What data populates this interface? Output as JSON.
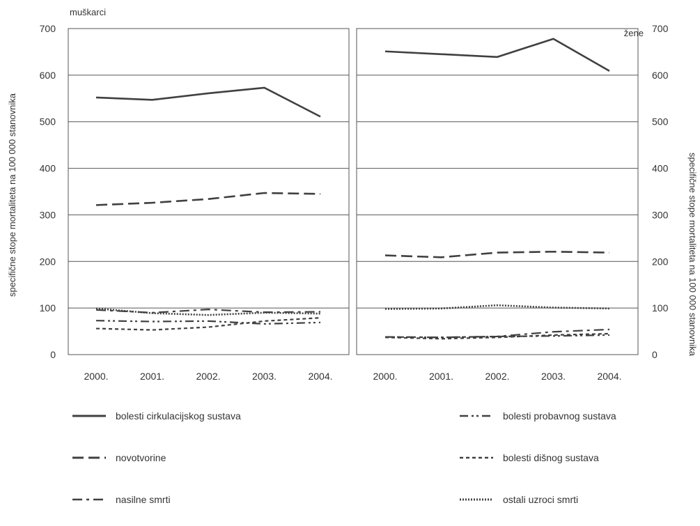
{
  "chart_data": {
    "type": "line",
    "x": [
      "2000.",
      "2001.",
      "2002.",
      "2003.",
      "2004."
    ],
    "ylim": [
      0,
      700
    ],
    "yticks": [
      0,
      100,
      200,
      300,
      400,
      500,
      600,
      700
    ],
    "ylabel": "specifične stope mortaliteta na 100 000 stanovnika",
    "grid": "horizontal",
    "legend_placement": "bottom",
    "line_color": "#404040",
    "panels": [
      {
        "label": "muškarci",
        "series": [
          {
            "name": "bolesti cirkulacijskog sustava",
            "values": [
              552,
              547,
              561,
              573,
              511
            ]
          },
          {
            "name": "novotvorine",
            "values": [
              321,
              326,
              334,
              347,
              345
            ]
          },
          {
            "name": "nasilne smrti",
            "values": [
              96,
              90,
              97,
              91,
              92
            ]
          },
          {
            "name": "bolesti probavnog sustava",
            "values": [
              73,
              71,
              72,
              66,
              69
            ]
          },
          {
            "name": "bolesti dišnog sustava",
            "values": [
              56,
              53,
              59,
              72,
              79
            ]
          },
          {
            "name": "ostali uzroci smrti",
            "values": [
              99,
              89,
              85,
              90,
              88
            ]
          }
        ]
      },
      {
        "label": "žene",
        "series": [
          {
            "name": "bolesti cirkulacijskog sustava",
            "values": [
              651,
              645,
              639,
              678,
              609
            ]
          },
          {
            "name": "novotvorine",
            "values": [
              213,
              209,
              219,
              221,
              219
            ]
          },
          {
            "name": "nasilne smrti",
            "values": [
              38,
              37,
              39,
              49,
              54
            ]
          },
          {
            "name": "bolesti probavnog sustava",
            "values": [
              38,
              37,
              39,
              40,
              42
            ]
          },
          {
            "name": "bolesti dišnog sustava",
            "values": [
              37,
              34,
              37,
              42,
              45
            ]
          },
          {
            "name": "ostali uzroci smrti",
            "values": [
              98,
              99,
              106,
              101,
              99
            ]
          }
        ]
      }
    ],
    "legend": [
      "bolesti cirkulacijskog sustava",
      "novotvorine",
      "nasilne smrti",
      "bolesti probavnog sustava",
      "bolesti dišnog sustava",
      "ostali uzroci smrti"
    ]
  }
}
